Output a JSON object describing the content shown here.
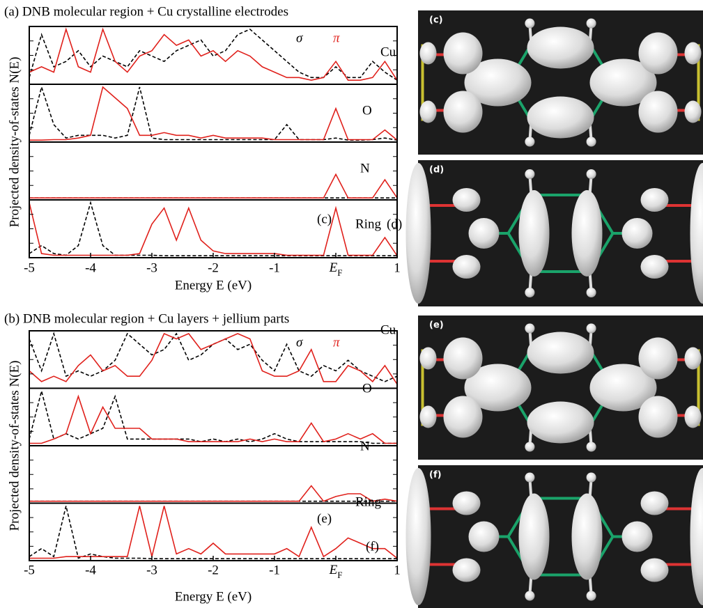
{
  "chart_data": [
    {
      "type": "line",
      "title": "(a) DNB molecular region + Cu crystalline electrodes",
      "xlabel": "Energy E (eV)",
      "ylabel": "Projected density-of-states N(E)",
      "xlim": [
        -5,
        1
      ],
      "ylim": [
        0,
        1
      ],
      "xticks": [
        -5,
        -4,
        -3,
        -2,
        -1,
        {
          "value": 0,
          "label": "EF"
        },
        1
      ],
      "x": [
        -5.0,
        -4.8,
        -4.6,
        -4.4,
        -4.2,
        -4.0,
        -3.8,
        -3.6,
        -3.4,
        -3.2,
        -3.0,
        -2.8,
        -2.6,
        -2.4,
        -2.2,
        -2.0,
        -1.8,
        -1.6,
        -1.4,
        -1.2,
        -1.0,
        -0.8,
        -0.6,
        -0.4,
        -0.2,
        0.0,
        0.2,
        0.4,
        0.6,
        0.8,
        1.0
      ],
      "panels": [
        "Cu",
        "O",
        "N",
        "Ring"
      ],
      "annotations": [
        "(c)",
        "(d)"
      ],
      "series": [
        {
          "name": "σ",
          "color": "#000000",
          "line_style": "dashed",
          "values": [
            [
              0.1,
              0.9,
              0.3,
              0.4,
              0.6,
              0.3,
              0.5,
              0.4,
              0.3,
              0.6,
              0.5,
              0.4,
              0.6,
              0.7,
              0.8,
              0.5,
              0.6,
              0.9,
              1.0,
              0.8,
              0.6,
              0.4,
              0.2,
              0.1,
              0.1,
              0.3,
              0.1,
              0.1,
              0.4,
              0.2,
              0.05
            ],
            [
              0.1,
              1.0,
              0.3,
              0.05,
              0.1,
              0.1,
              0.1,
              0.05,
              0.1,
              1.0,
              0.05,
              0.02,
              0.02,
              0.02,
              0.02,
              0.02,
              0.02,
              0.02,
              0.02,
              0.02,
              0.02,
              0.3,
              0.02,
              0.02,
              0.02,
              0.05,
              0.01,
              0.01,
              0.02,
              0.05,
              0.01
            ],
            [
              0.01,
              0.01,
              0.01,
              0.01,
              0.01,
              0.01,
              0.01,
              0.01,
              0.01,
              0.01,
              0.01,
              0.01,
              0.01,
              0.01,
              0.01,
              0.01,
              0.01,
              0.01,
              0.01,
              0.01,
              0.01,
              0.01,
              0.01,
              0.01,
              0.01,
              0.01,
              0.01,
              0.01,
              0.01,
              0.01,
              0.01
            ],
            [
              0.05,
              0.2,
              0.05,
              0.02,
              0.2,
              1.0,
              0.2,
              0.02,
              0.02,
              0.02,
              0.02,
              0.01,
              0.01,
              0.01,
              0.01,
              0.01,
              0.01,
              0.01,
              0.01,
              0.01,
              0.01,
              0.01,
              0.01,
              0.01,
              0.01,
              0.01,
              0.01,
              0.01,
              0.01,
              0.01,
              0.01
            ]
          ]
        },
        {
          "name": "π",
          "color": "#e0201b",
          "line_style": "solid",
          "values": [
            [
              0.2,
              0.3,
              0.2,
              1.0,
              0.3,
              0.2,
              1.0,
              0.4,
              0.2,
              0.5,
              0.6,
              0.9,
              0.7,
              0.8,
              0.5,
              0.6,
              0.4,
              0.6,
              0.5,
              0.3,
              0.2,
              0.1,
              0.1,
              0.05,
              0.1,
              0.4,
              0.05,
              0.05,
              0.1,
              0.4,
              0.05
            ],
            [
              0.01,
              0.01,
              0.02,
              0.02,
              0.05,
              0.1,
              1.0,
              0.8,
              0.6,
              0.1,
              0.1,
              0.15,
              0.1,
              0.1,
              0.05,
              0.1,
              0.05,
              0.05,
              0.05,
              0.05,
              0.02,
              0.02,
              0.02,
              0.02,
              0.02,
              0.6,
              0.02,
              0.02,
              0.02,
              0.2,
              0.01
            ],
            [
              0.01,
              0.01,
              0.01,
              0.01,
              0.01,
              0.01,
              0.01,
              0.01,
              0.01,
              0.01,
              0.01,
              0.01,
              0.01,
              0.01,
              0.01,
              0.01,
              0.01,
              0.01,
              0.01,
              0.01,
              0.01,
              0.01,
              0.01,
              0.01,
              0.01,
              0.45,
              0.01,
              0.01,
              0.01,
              0.35,
              0.01
            ],
            [
              1.0,
              0.05,
              0.02,
              0.02,
              0.02,
              0.02,
              0.02,
              0.02,
              0.02,
              0.05,
              0.6,
              0.9,
              0.3,
              0.9,
              0.3,
              0.1,
              0.05,
              0.05,
              0.05,
              0.05,
              0.05,
              0.02,
              0.02,
              0.02,
              0.02,
              0.9,
              0.02,
              0.02,
              0.02,
              0.35,
              0.01
            ]
          ]
        }
      ]
    },
    {
      "type": "line",
      "title": "(b) DNB molecular region + Cu layers + jellium parts",
      "xlabel": "Energy E (eV)",
      "ylabel": "Projected density-of-states N(E)",
      "xlim": [
        -5,
        1
      ],
      "ylim": [
        0,
        1
      ],
      "xticks": [
        -5,
        -4,
        -3,
        -2,
        -1,
        {
          "value": 0,
          "label": "EF"
        },
        1
      ],
      "x": [
        -5.0,
        -4.8,
        -4.6,
        -4.4,
        -4.2,
        -4.0,
        -3.8,
        -3.6,
        -3.4,
        -3.2,
        -3.0,
        -2.8,
        -2.6,
        -2.4,
        -2.2,
        -2.0,
        -1.8,
        -1.6,
        -1.4,
        -1.2,
        -1.0,
        -0.8,
        -0.6,
        -0.4,
        -0.2,
        0.0,
        0.2,
        0.4,
        0.6,
        0.8,
        1.0
      ],
      "panels": [
        "Cu",
        "O",
        "N",
        "Ring"
      ],
      "annotations": [
        "(e)",
        "(f)"
      ],
      "series": [
        {
          "name": "σ",
          "color": "#000000",
          "line_style": "dashed",
          "values": [
            [
              0.9,
              0.3,
              1.0,
              0.2,
              0.3,
              0.2,
              0.3,
              0.5,
              1.0,
              0.8,
              0.6,
              0.7,
              1.0,
              0.5,
              0.6,
              0.8,
              0.9,
              0.7,
              0.8,
              0.5,
              0.3,
              0.8,
              0.3,
              0.2,
              0.4,
              0.3,
              0.5,
              0.3,
              0.2,
              0.1,
              0.2
            ],
            [
              0.1,
              1.0,
              0.1,
              0.2,
              0.1,
              0.2,
              0.3,
              0.9,
              0.1,
              0.1,
              0.1,
              0.1,
              0.1,
              0.1,
              0.05,
              0.1,
              0.05,
              0.1,
              0.05,
              0.1,
              0.2,
              0.1,
              0.05,
              0.05,
              0.05,
              0.05,
              0.05,
              0.05,
              0.02,
              0.02,
              0.02
            ],
            [
              0.01,
              0.01,
              0.01,
              0.01,
              0.01,
              0.01,
              0.01,
              0.01,
              0.01,
              0.01,
              0.01,
              0.01,
              0.01,
              0.01,
              0.01,
              0.01,
              0.01,
              0.01,
              0.01,
              0.01,
              0.01,
              0.01,
              0.01,
              0.01,
              0.01,
              0.01,
              0.01,
              0.01,
              0.01,
              0.01,
              0.01
            ],
            [
              0.05,
              0.2,
              0.05,
              1.0,
              0.02,
              0.1,
              0.05,
              0.02,
              0.02,
              0.02,
              0.01,
              0.01,
              0.01,
              0.01,
              0.01,
              0.01,
              0.01,
              0.01,
              0.01,
              0.01,
              0.01,
              0.01,
              0.01,
              0.01,
              0.01,
              0.01,
              0.01,
              0.01,
              0.01,
              0.01,
              0.01
            ]
          ]
        },
        {
          "name": "π",
          "color": "#e0201b",
          "line_style": "solid",
          "values": [
            [
              0.3,
              0.1,
              0.2,
              0.1,
              0.4,
              0.6,
              0.3,
              0.4,
              0.2,
              0.2,
              0.5,
              1.0,
              0.9,
              1.0,
              0.7,
              0.8,
              0.9,
              1.0,
              0.9,
              0.3,
              0.2,
              0.2,
              0.3,
              0.7,
              0.1,
              0.1,
              0.4,
              0.3,
              0.1,
              0.4,
              0.05
            ],
            [
              0.02,
              0.02,
              0.1,
              0.2,
              0.9,
              0.2,
              0.7,
              0.3,
              0.3,
              0.3,
              0.1,
              0.1,
              0.1,
              0.05,
              0.05,
              0.05,
              0.05,
              0.05,
              0.1,
              0.05,
              0.1,
              0.05,
              0.05,
              0.4,
              0.05,
              0.1,
              0.2,
              0.1,
              0.2,
              0.02,
              0.02
            ],
            [
              0.01,
              0.01,
              0.01,
              0.01,
              0.01,
              0.01,
              0.01,
              0.01,
              0.01,
              0.01,
              0.01,
              0.01,
              0.01,
              0.01,
              0.01,
              0.01,
              0.01,
              0.01,
              0.01,
              0.01,
              0.01,
              0.01,
              0.01,
              0.3,
              0.01,
              0.1,
              0.15,
              0.15,
              0.01,
              0.05,
              0.01
            ],
            [
              0.02,
              0.02,
              0.02,
              0.05,
              0.05,
              0.05,
              0.05,
              0.05,
              0.05,
              1.0,
              0.05,
              1.0,
              0.1,
              0.2,
              0.1,
              0.3,
              0.1,
              0.1,
              0.1,
              0.1,
              0.1,
              0.2,
              0.05,
              0.6,
              0.05,
              0.2,
              0.4,
              0.3,
              0.2,
              0.2,
              0.02
            ]
          ]
        }
      ]
    }
  ],
  "figure_panels": [
    {
      "label": "(c)"
    },
    {
      "label": "(d)"
    },
    {
      "label": "(e)"
    },
    {
      "label": "(f)"
    }
  ]
}
